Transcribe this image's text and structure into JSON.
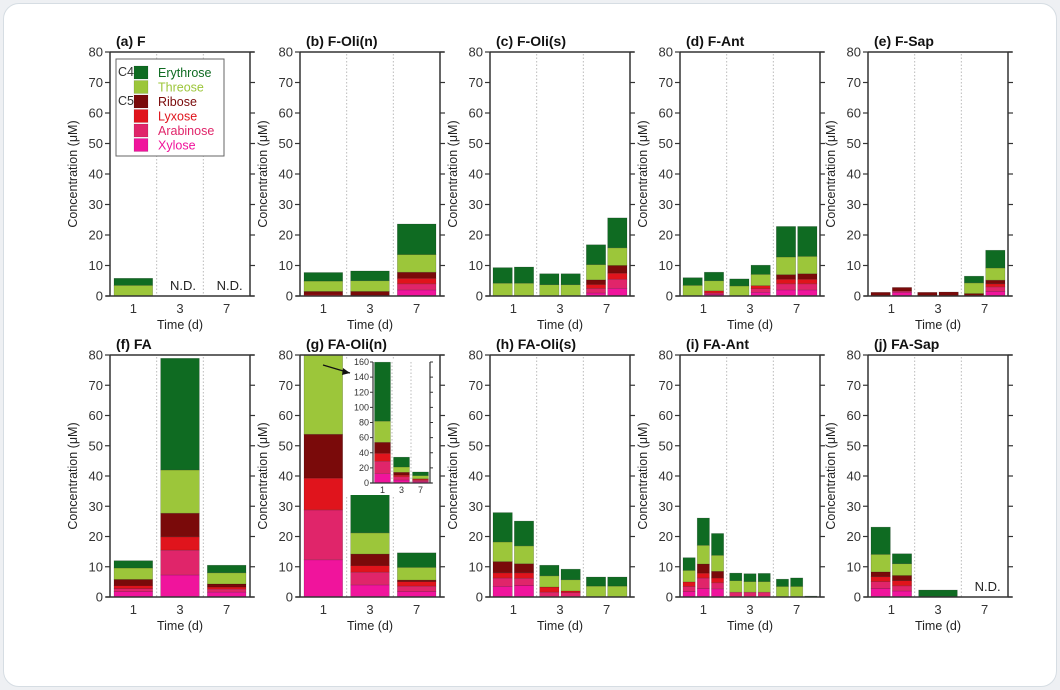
{
  "chart_data": {
    "type": "bar",
    "stacked": true,
    "ylabel": "Concentration (μM)",
    "xlabel": "Time (d)",
    "ylim": [
      0,
      80
    ],
    "yticks": [
      0,
      10,
      20,
      30,
      40,
      50,
      60,
      70,
      80
    ],
    "x_categories": [
      "1",
      "3",
      "7"
    ],
    "grid": "dotted vertical separators between time groups",
    "components": [
      "Xylose",
      "Arabinose",
      "Lyxose",
      "Ribose",
      "Threose",
      "Erythrose"
    ],
    "legend": {
      "placement": "top-left of panel (a)",
      "groups": [
        {
          "label": "C4",
          "items": [
            "Erythrose",
            "Threose"
          ]
        },
        {
          "label": "C5",
          "items": [
            "Ribose",
            "Lyxose",
            "Arabinose",
            "Xylose"
          ]
        }
      ],
      "entries": [
        {
          "name": "Erythrose",
          "color": "#0f6b22"
        },
        {
          "name": "Threose",
          "color": "#9cc63a"
        },
        {
          "name": "Ribose",
          "color": "#7a0a0a"
        },
        {
          "name": "Lyxose",
          "color": "#e0141c"
        },
        {
          "name": "Arabinose",
          "color": "#e0256a"
        },
        {
          "name": "Xylose",
          "color": "#f0149c"
        }
      ]
    },
    "panels": [
      {
        "id": "a",
        "title": "(a) F",
        "nd": [
          "3",
          "7"
        ],
        "bars": [
          {
            "group": "1",
            "values": [
              0,
              0,
              0,
              0,
              3.5,
              2.3
            ]
          }
        ]
      },
      {
        "id": "b",
        "title": "(b) F-Oli(n)",
        "nd": [],
        "bars": [
          {
            "group": "1",
            "values": [
              0,
              0,
              0.5,
              1.0,
              3.4,
              2.8
            ]
          },
          {
            "group": "3",
            "values": [
              0,
              0,
              0,
              1.5,
              3.5,
              3.2
            ]
          },
          {
            "group": "7",
            "values": [
              2.0,
              2.0,
              1.8,
              2.0,
              5.8,
              10.0
            ]
          }
        ]
      },
      {
        "id": "c",
        "title": "(c) F-Oli(s)",
        "nd": [],
        "bars": [
          {
            "group": "1",
            "values": [
              0,
              0,
              0,
              0,
              4.2,
              5.1
            ]
          },
          {
            "group": "1",
            "values": [
              0,
              0,
              0,
              0,
              4.2,
              5.3
            ]
          },
          {
            "group": "3",
            "values": [
              0,
              0,
              0,
              0,
              3.7,
              3.6
            ]
          },
          {
            "group": "3",
            "values": [
              0,
              0,
              0,
              0,
              3.7,
              3.6
            ]
          },
          {
            "group": "7",
            "values": [
              1.0,
              1.5,
              1.3,
              1.5,
              5.0,
              6.5
            ]
          },
          {
            "group": "7",
            "values": [
              2.5,
              3.0,
              2.0,
              2.5,
              5.8,
              9.8
            ]
          }
        ]
      },
      {
        "id": "d",
        "title": "(d) F-Ant",
        "nd": [],
        "bars": [
          {
            "group": "1",
            "values": [
              0,
              0,
              0,
              0,
              3.5,
              2.5
            ]
          },
          {
            "group": "1",
            "values": [
              0.5,
              0.5,
              0.7,
              0,
              3.3,
              2.8
            ]
          },
          {
            "group": "3",
            "values": [
              0,
              0,
              0,
              0,
              3.3,
              2.3
            ]
          },
          {
            "group": "3",
            "values": [
              1.2,
              1.2,
              1.0,
              0,
              3.7,
              3.0
            ]
          },
          {
            "group": "7",
            "values": [
              2.0,
              2.0,
              1.5,
              1.5,
              5.8,
              10.0
            ]
          },
          {
            "group": "7",
            "values": [
              2.0,
              2.0,
              1.5,
              1.8,
              5.7,
              9.8
            ]
          }
        ]
      },
      {
        "id": "e",
        "title": "(e) F-Sap",
        "nd": [],
        "bars": [
          {
            "group": "1",
            "values": [
              0,
              0,
              0,
              1.2,
              0,
              0
            ]
          },
          {
            "group": "1",
            "values": [
              1.2,
              0.4,
              0,
              1.2,
              0,
              0
            ]
          },
          {
            "group": "3",
            "values": [
              0,
              0,
              0,
              1.2,
              0,
              0
            ]
          },
          {
            "group": "3",
            "values": [
              0,
              0,
              0,
              1.3,
              0,
              0
            ]
          },
          {
            "group": "7",
            "values": [
              0,
              0,
              0,
              0.8,
              3.5,
              2.2
            ]
          },
          {
            "group": "7",
            "values": [
              1.5,
              1.5,
              1.0,
              1.2,
              4.0,
              5.8
            ]
          }
        ]
      },
      {
        "id": "f",
        "title": "(f) FA",
        "nd": [],
        "bars": [
          {
            "group": "1",
            "values": [
              1.8,
              1.0,
              1.0,
              2.0,
              3.8,
              2.4
            ]
          },
          {
            "group": "3",
            "values": [
              7.3,
              8.2,
              4.4,
              7.8,
              14.3,
              36.9
            ]
          },
          {
            "group": "7",
            "values": [
              1.6,
              1.0,
              0.7,
              1.0,
              3.7,
              2.5
            ]
          }
        ]
      },
      {
        "id": "g",
        "title": "(g) FA-Oli(n)",
        "nd": [],
        "clipped_first_bar": true,
        "bars": [
          {
            "group": "1",
            "values": [
              12.3,
              16.5,
              10.5,
              14.5,
              28.0,
              78.0
            ]
          },
          {
            "group": "3",
            "values": [
              4.0,
              4.2,
              2.2,
              3.8,
              7.0,
              13.0
            ]
          },
          {
            "group": "7",
            "values": [
              1.8,
              1.8,
              1.5,
              0.5,
              4.2,
              4.8
            ]
          }
        ],
        "inset": {
          "ylim": [
            0,
            160
          ],
          "yticks": [
            0,
            20,
            40,
            60,
            80,
            100,
            120,
            140,
            160
          ],
          "x_categories": [
            "1",
            "3",
            "7"
          ]
        }
      },
      {
        "id": "h",
        "title": "(h) FA-Oli(s)",
        "nd": [],
        "bars": [
          {
            "group": "1",
            "values": [
              3.5,
              2.8,
              1.7,
              3.7,
              6.5,
              9.7
            ]
          },
          {
            "group": "1",
            "values": [
              3.8,
              2.4,
              1.8,
              3.0,
              5.9,
              8.2
            ]
          },
          {
            "group": "3",
            "values": [
              0,
              1.6,
              1.7,
              0,
              3.7,
              3.5
            ]
          },
          {
            "group": "3",
            "values": [
              0,
              1.5,
              0.5,
              0,
              3.7,
              3.5
            ]
          },
          {
            "group": "7",
            "values": [
              0,
              0,
              0,
              0,
              3.6,
              3.0
            ]
          },
          {
            "group": "7",
            "values": [
              0,
              0,
              0,
              0,
              3.6,
              3.0
            ]
          }
        ]
      },
      {
        "id": "i",
        "title": "(i) FA-Ant",
        "nd": [],
        "bars": [
          {
            "group": "1",
            "values": [
              1.8,
              1.7,
              1.5,
              0,
              3.8,
              4.2
            ]
          },
          {
            "group": "1",
            "values": [
              2.8,
              3.5,
              1.6,
              3.0,
              6.2,
              9.0
            ]
          },
          {
            "group": "1",
            "values": [
              2.7,
              2.0,
              1.6,
              2.2,
              5.3,
              7.2
            ]
          },
          {
            "group": "3",
            "values": [
              0,
              1.6,
              0,
              0,
              3.8,
              2.5
            ]
          },
          {
            "group": "3",
            "values": [
              0,
              1.6,
              0,
              0,
              3.5,
              2.6
            ]
          },
          {
            "group": "3",
            "values": [
              0,
              1.6,
              0,
              0,
              3.5,
              2.7
            ]
          },
          {
            "group": "7",
            "values": [
              0,
              0,
              0,
              0,
              3.5,
              2.4
            ]
          },
          {
            "group": "7",
            "values": [
              0,
              0,
              0,
              0,
              3.5,
              2.8
            ]
          },
          {
            "group": "7",
            "values": [
              0,
              0,
              0,
              0,
              0,
              0.3
            ]
          }
        ]
      },
      {
        "id": "j",
        "title": "(j) FA-Sap",
        "nd": [
          "7"
        ],
        "bars": [
          {
            "group": "1",
            "values": [
              2.8,
              2.3,
              1.6,
              1.6,
              5.8,
              9.0
            ]
          },
          {
            "group": "1",
            "values": [
              2.0,
              1.7,
              1.7,
              1.7,
              3.9,
              3.3
            ]
          },
          {
            "group": "3",
            "values": [
              0,
              0,
              0,
              0,
              0,
              2.3
            ]
          }
        ]
      }
    ],
    "nd_label": "N.D."
  }
}
